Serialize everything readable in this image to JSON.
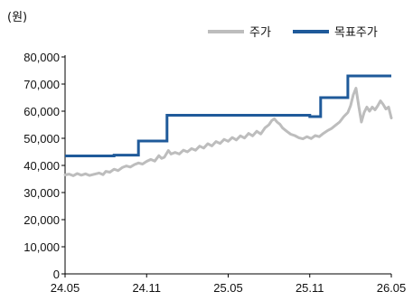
{
  "chart_data": {
    "type": "line",
    "unit_label": "(원)",
    "x_tick_labels": [
      "24.05",
      "24.11",
      "25.05",
      "25.11",
      "26.05"
    ],
    "x_tick_positions": [
      0,
      6,
      12,
      18,
      24
    ],
    "ylim": [
      0,
      80000
    ],
    "y_ticks": [
      0,
      10000,
      20000,
      30000,
      40000,
      50000,
      60000,
      70000,
      80000
    ],
    "y_tick_labels": [
      "0",
      "10,000",
      "20,000",
      "30,000",
      "40,000",
      "50,000",
      "60,000",
      "70,000",
      "80,000"
    ],
    "legend_position": "top-right",
    "grid": false,
    "x_unit": "months since 24.05",
    "series": [
      {
        "name": "주가",
        "color": "#bdbdbd",
        "points": [
          [
            0.0,
            36500
          ],
          [
            0.3,
            36800
          ],
          [
            0.6,
            36200
          ],
          [
            0.9,
            37000
          ],
          [
            1.2,
            36400
          ],
          [
            1.5,
            36900
          ],
          [
            1.8,
            36300
          ],
          [
            2.1,
            36700
          ],
          [
            2.5,
            37200
          ],
          [
            2.8,
            36600
          ],
          [
            3.0,
            37800
          ],
          [
            3.3,
            37500
          ],
          [
            3.6,
            38600
          ],
          [
            3.9,
            38100
          ],
          [
            4.2,
            39200
          ],
          [
            4.5,
            39800
          ],
          [
            4.8,
            39400
          ],
          [
            5.1,
            40300
          ],
          [
            5.4,
            40900
          ],
          [
            5.7,
            40500
          ],
          [
            6.0,
            41500
          ],
          [
            6.3,
            42200
          ],
          [
            6.6,
            41600
          ],
          [
            6.9,
            43600
          ],
          [
            7.1,
            42600
          ],
          [
            7.3,
            43000
          ],
          [
            7.6,
            45500
          ],
          [
            7.8,
            44200
          ],
          [
            8.1,
            44800
          ],
          [
            8.4,
            44200
          ],
          [
            8.7,
            45600
          ],
          [
            9.0,
            45000
          ],
          [
            9.3,
            46200
          ],
          [
            9.6,
            45600
          ],
          [
            9.9,
            47100
          ],
          [
            10.2,
            46400
          ],
          [
            10.5,
            48000
          ],
          [
            10.8,
            47200
          ],
          [
            11.1,
            48800
          ],
          [
            11.4,
            48100
          ],
          [
            11.7,
            49600
          ],
          [
            12.0,
            48900
          ],
          [
            12.3,
            50300
          ],
          [
            12.6,
            49400
          ],
          [
            12.9,
            50900
          ],
          [
            13.2,
            50100
          ],
          [
            13.5,
            51800
          ],
          [
            13.8,
            50900
          ],
          [
            14.1,
            52600
          ],
          [
            14.4,
            51600
          ],
          [
            14.7,
            53800
          ],
          [
            15.0,
            55000
          ],
          [
            15.2,
            56500
          ],
          [
            15.4,
            57200
          ],
          [
            15.6,
            56000
          ],
          [
            15.8,
            55200
          ],
          [
            16.0,
            53800
          ],
          [
            16.3,
            52600
          ],
          [
            16.6,
            51500
          ],
          [
            16.9,
            51000
          ],
          [
            17.2,
            50200
          ],
          [
            17.5,
            49800
          ],
          [
            17.8,
            50600
          ],
          [
            18.1,
            49900
          ],
          [
            18.4,
            51000
          ],
          [
            18.7,
            50600
          ],
          [
            19.0,
            51800
          ],
          [
            19.3,
            52800
          ],
          [
            19.6,
            53600
          ],
          [
            19.9,
            54800
          ],
          [
            20.2,
            56000
          ],
          [
            20.5,
            58000
          ],
          [
            20.8,
            59500
          ],
          [
            21.0,
            62000
          ],
          [
            21.2,
            66000
          ],
          [
            21.4,
            68500
          ],
          [
            21.6,
            62000
          ],
          [
            21.8,
            56000
          ],
          [
            22.0,
            59500
          ],
          [
            22.2,
            61500
          ],
          [
            22.4,
            60000
          ],
          [
            22.6,
            61500
          ],
          [
            22.8,
            60500
          ],
          [
            23.0,
            62000
          ],
          [
            23.2,
            63800
          ],
          [
            23.4,
            62500
          ],
          [
            23.6,
            60800
          ],
          [
            23.8,
            61500
          ],
          [
            24.0,
            57500
          ]
        ]
      },
      {
        "name": "목표주가",
        "color": "#1f5a9a",
        "steps": [
          [
            0.0,
            43500
          ],
          [
            3.6,
            43500
          ],
          [
            3.6,
            43800
          ],
          [
            5.4,
            43800
          ],
          [
            5.4,
            49000
          ],
          [
            7.5,
            49000
          ],
          [
            7.5,
            58500
          ],
          [
            18.0,
            58500
          ],
          [
            18.0,
            58000
          ],
          [
            18.8,
            58000
          ],
          [
            18.8,
            65000
          ],
          [
            20.8,
            65000
          ],
          [
            20.8,
            73000
          ],
          [
            24.0,
            73000
          ]
        ]
      }
    ]
  }
}
